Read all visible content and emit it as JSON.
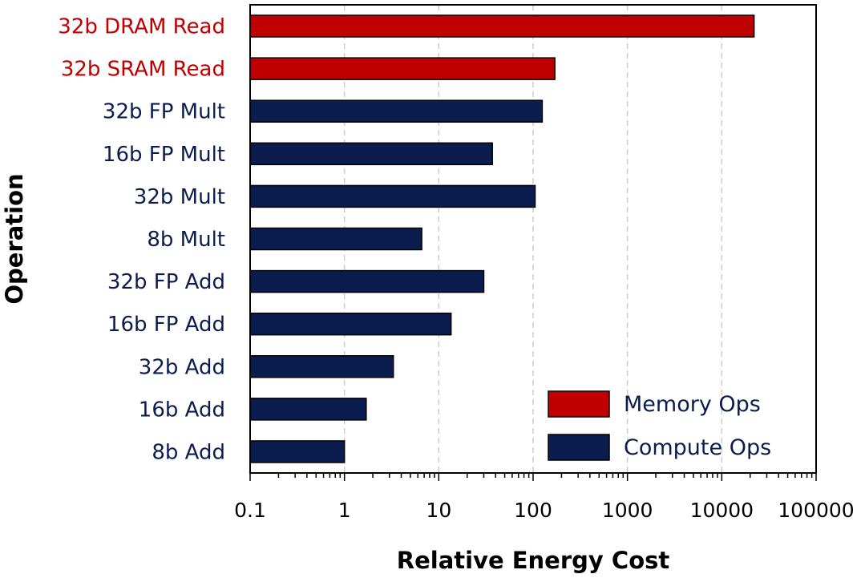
{
  "chart_data": {
    "type": "bar",
    "orientation": "horizontal",
    "xscale": "log",
    "xlim": [
      0.1,
      100000
    ],
    "xticks": [
      "0.1",
      "1",
      "10",
      "100",
      "1000",
      "10000",
      "100000"
    ],
    "xlabel": "Relative Energy Cost",
    "ylabel": "Operation",
    "grid": "vertical-dashed",
    "legend_position": "bottom-right",
    "colors": {
      "memory": "#c00000",
      "compute": "#0b1d4f",
      "grid": "#cccccc"
    },
    "categories": [
      "32b DRAM Read",
      "32b SRAM Read",
      "32b FP Mult",
      "16b FP Mult",
      "32b Mult",
      "8b Mult",
      "32b FP Add",
      "16b FP Add",
      "32b Add",
      "16b Add",
      "8b Add"
    ],
    "values": [
      22000,
      170,
      125,
      37,
      105,
      6.6,
      30,
      13.5,
      3.3,
      1.7,
      1
    ],
    "groups": [
      "memory",
      "memory",
      "compute",
      "compute",
      "compute",
      "compute",
      "compute",
      "compute",
      "compute",
      "compute",
      "compute"
    ],
    "legend": [
      {
        "key": "memory",
        "label": "Memory Ops"
      },
      {
        "key": "compute",
        "label": "Compute Ops"
      }
    ]
  }
}
